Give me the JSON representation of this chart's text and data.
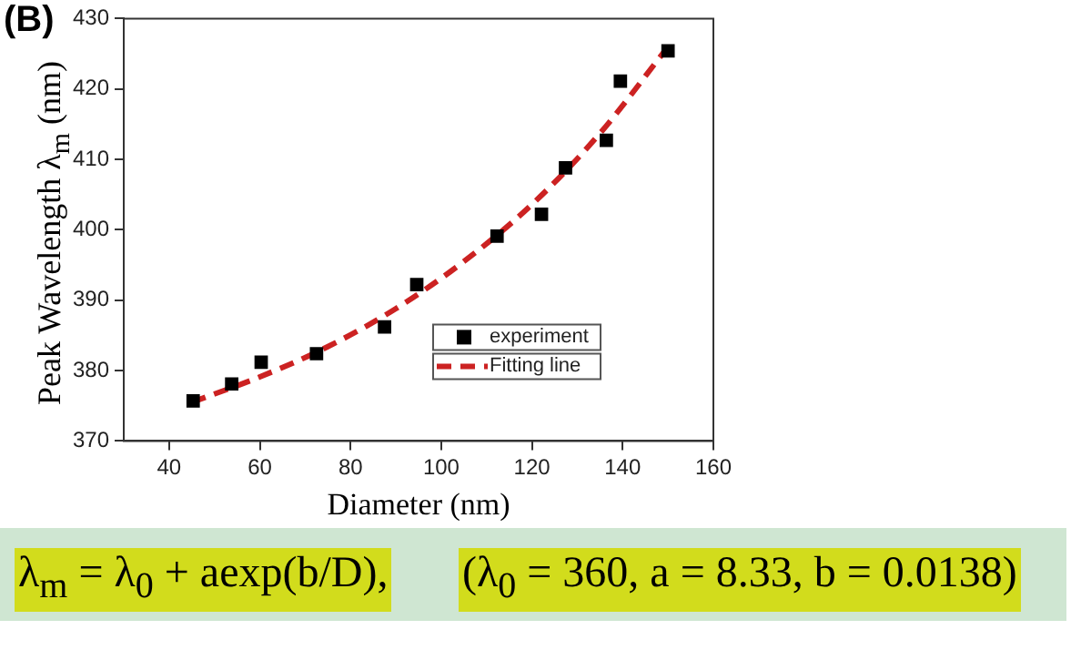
{
  "chart_data": {
    "type": "scatter",
    "xlabel": "Diameter (nm)",
    "ylabel": "Peak Wavelength λ$_{m}$ (nm)",
    "xlim": [
      30,
      160
    ],
    "xticks": [
      40,
      60,
      80,
      100,
      120,
      140,
      160
    ],
    "ylim": [
      370,
      430
    ],
    "yticks": [
      370,
      380,
      390,
      400,
      410,
      420,
      430
    ],
    "grid": false,
    "legend": "bottom right",
    "series": [
      {
        "name": "experiment",
        "marker": "square",
        "color": "#000000",
        "x": [
          45.3,
          53.8,
          60.3,
          72.5,
          87.5,
          94.6,
          112.3,
          122.1,
          127.4,
          136.4,
          139.5,
          150.0
        ],
        "values": [
          375.7,
          378.1,
          381.2,
          382.4,
          386.2,
          392.2,
          399.1,
          402.2,
          408.8,
          412.7,
          421.1,
          425.4
        ]
      },
      {
        "name": "Fitting line",
        "type": "line",
        "marker": "none",
        "line_style": "dashed",
        "color": "#cc2222",
        "x": [
          45,
          60,
          75,
          90,
          105,
          120,
          135,
          150
        ],
        "values": [
          375.5,
          379.1,
          383.4,
          388.8,
          395.5,
          403.6,
          413.7,
          426.0
        ]
      }
    ],
    "annotations": [
      "(B)",
      "λ$_{m}$ = λ$_{0}$ + aexp(b/D),",
      "(λ$_{0}$ = 360, a = 8.33, b = 0.0138)"
    ]
  }
}
